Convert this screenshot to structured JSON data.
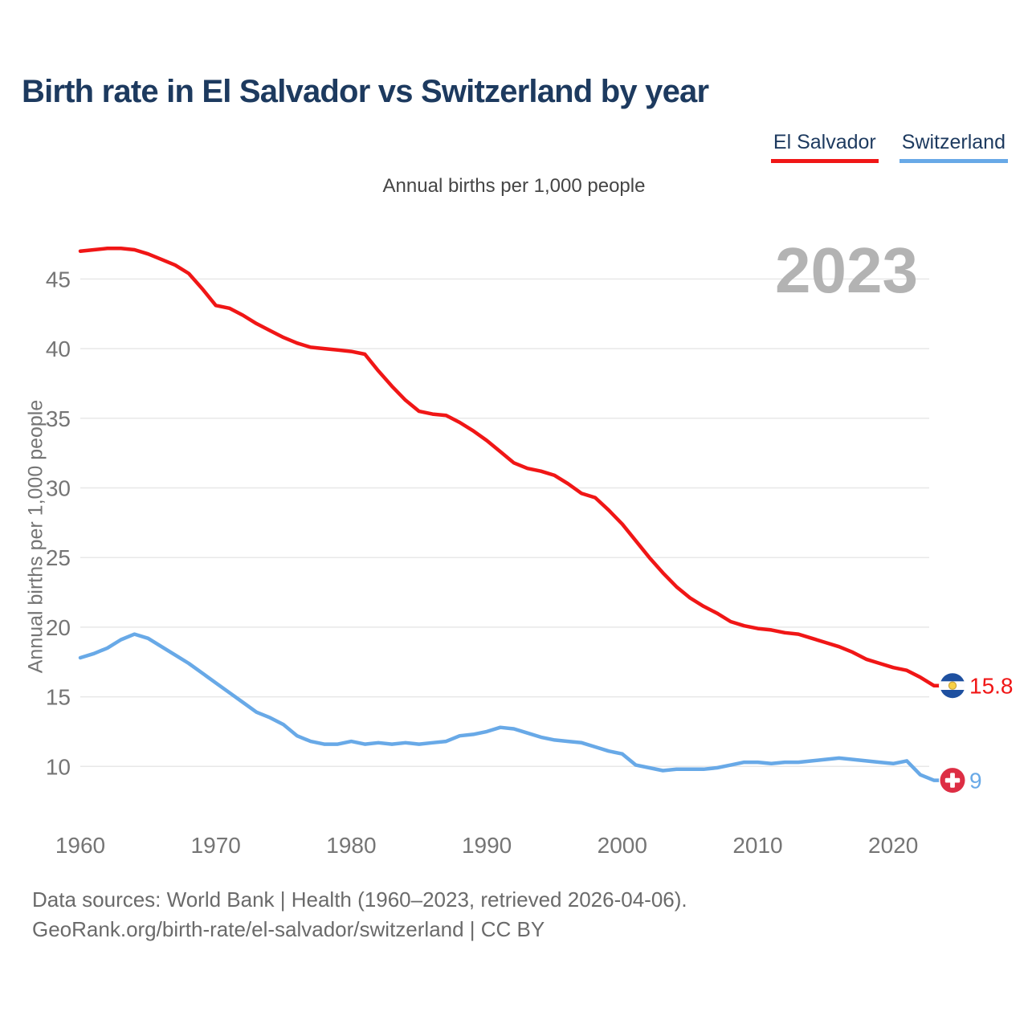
{
  "header": {
    "title": "Birth rate in El Salvador vs Switzerland by year"
  },
  "legend": {
    "items": [
      {
        "label": "El Salvador",
        "color": "#f01616"
      },
      {
        "label": "Switzerland",
        "color": "#68a9e7"
      }
    ]
  },
  "footer": {
    "line1": "Data sources: World Bank | Health (1960–2023, retrieved 2026-04-06).",
    "line2": "GeoRank.org/birth-rate/el-salvador/switzerland | CC BY"
  },
  "chart_data": {
    "type": "line",
    "title": "Birth rate in El Salvador vs Switzerland by year",
    "subtitle": "Annual births per 1,000 people",
    "ylabel": "Annual births per 1,000 people",
    "watermark": "2023",
    "grid": "horizontal",
    "legend_position": "top-right",
    "xlim": [
      1960,
      2023
    ],
    "ylim": [
      8,
      48.5
    ],
    "y_ticks": [
      10,
      15,
      20,
      25,
      30,
      35,
      40,
      45
    ],
    "x_ticks": [
      1960,
      1970,
      1980,
      1990,
      2000,
      2010,
      2020
    ],
    "x": [
      1960,
      1961,
      1962,
      1963,
      1964,
      1965,
      1966,
      1967,
      1968,
      1969,
      1970,
      1971,
      1972,
      1973,
      1974,
      1975,
      1976,
      1977,
      1978,
      1979,
      1980,
      1981,
      1982,
      1983,
      1984,
      1985,
      1986,
      1987,
      1988,
      1989,
      1990,
      1991,
      1992,
      1993,
      1994,
      1995,
      1996,
      1997,
      1998,
      1999,
      2000,
      2001,
      2002,
      2003,
      2004,
      2005,
      2006,
      2007,
      2008,
      2009,
      2010,
      2011,
      2012,
      2013,
      2014,
      2015,
      2016,
      2017,
      2018,
      2019,
      2020,
      2021,
      2022,
      2023
    ],
    "series": [
      {
        "name": "El Salvador",
        "color": "#f01616",
        "end_label": "15.8",
        "icon": "el-salvador-flag-icon",
        "values": [
          47.0,
          47.1,
          47.2,
          47.2,
          47.1,
          46.8,
          46.4,
          46.0,
          45.4,
          44.3,
          43.1,
          42.9,
          42.4,
          41.8,
          41.3,
          40.8,
          40.4,
          40.1,
          40.0,
          39.9,
          39.8,
          39.6,
          38.4,
          37.3,
          36.3,
          35.5,
          35.3,
          35.2,
          34.7,
          34.1,
          33.4,
          32.6,
          31.8,
          31.4,
          31.2,
          30.9,
          30.3,
          29.6,
          29.3,
          28.4,
          27.4,
          26.2,
          25.0,
          23.9,
          22.9,
          22.1,
          21.5,
          21.0,
          20.4,
          20.1,
          19.9,
          19.8,
          19.6,
          19.5,
          19.2,
          18.9,
          18.6,
          18.2,
          17.7,
          17.4,
          17.1,
          16.9,
          16.4,
          15.8
        ]
      },
      {
        "name": "Switzerland",
        "color": "#68a9e7",
        "end_label": "9",
        "icon": "switzerland-flag-icon",
        "values": [
          17.8,
          18.1,
          18.5,
          19.1,
          19.5,
          19.2,
          18.6,
          18.0,
          17.4,
          16.7,
          16.0,
          15.3,
          14.6,
          13.9,
          13.5,
          13.0,
          12.2,
          11.8,
          11.6,
          11.6,
          11.8,
          11.6,
          11.7,
          11.6,
          11.7,
          11.6,
          11.7,
          11.8,
          12.2,
          12.3,
          12.5,
          12.8,
          12.7,
          12.4,
          12.1,
          11.9,
          11.8,
          11.7,
          11.4,
          11.1,
          10.9,
          10.1,
          9.9,
          9.7,
          9.8,
          9.8,
          9.8,
          9.9,
          10.1,
          10.3,
          10.3,
          10.2,
          10.3,
          10.3,
          10.4,
          10.5,
          10.6,
          10.5,
          10.4,
          10.3,
          10.2,
          10.4,
          9.4,
          9.0
        ]
      }
    ],
    "flag_colors": {
      "el_salvador_blue": "#1e50a0",
      "el_salvador_white": "#fdfdfd",
      "el_salvador_emblem": "#f7d046",
      "switzerland_red": "#dd2e44",
      "switzerland_cross": "#ffffff"
    }
  }
}
